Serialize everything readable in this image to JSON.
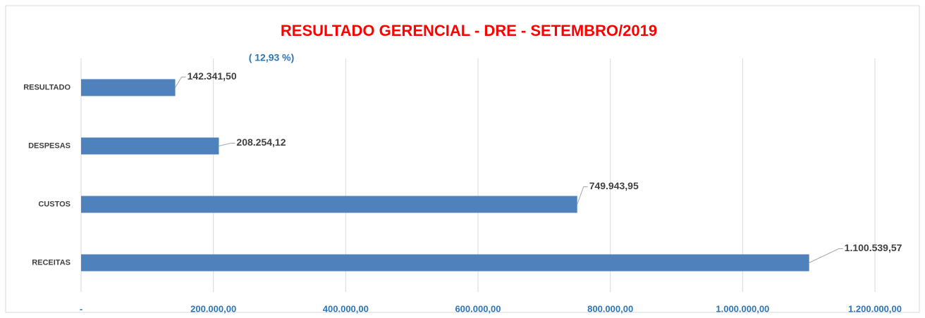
{
  "chart_data": {
    "type": "bar",
    "orientation": "horizontal",
    "title": "RESULTADO GERENCIAL - DRE - SETEMBRO/2019",
    "annotation": "( 12,93 %)",
    "categories": [
      "RESULTADO",
      "DESPESAS",
      "CUSTOS",
      "RECEITAS"
    ],
    "values": [
      142341.5,
      208254.12,
      749943.95,
      1100539.57
    ],
    "value_labels": [
      "142.341,50",
      "208.254,12",
      "749.943,95",
      "1.100.539,57"
    ],
    "color": "#4f81bd",
    "xlim": [
      0,
      1200000
    ],
    "xticks": [
      {
        "value": 0,
        "label": "-"
      },
      {
        "value": 200000,
        "label": "200.000,00"
      },
      {
        "value": 400000,
        "label": "400.000,00"
      },
      {
        "value": 600000,
        "label": "600.000,00"
      },
      {
        "value": 800000,
        "label": "800.000,00"
      },
      {
        "value": 1000000,
        "label": "1.000.000,00"
      },
      {
        "value": 1200000,
        "label": "1.200.000,00"
      }
    ],
    "grid": true
  }
}
